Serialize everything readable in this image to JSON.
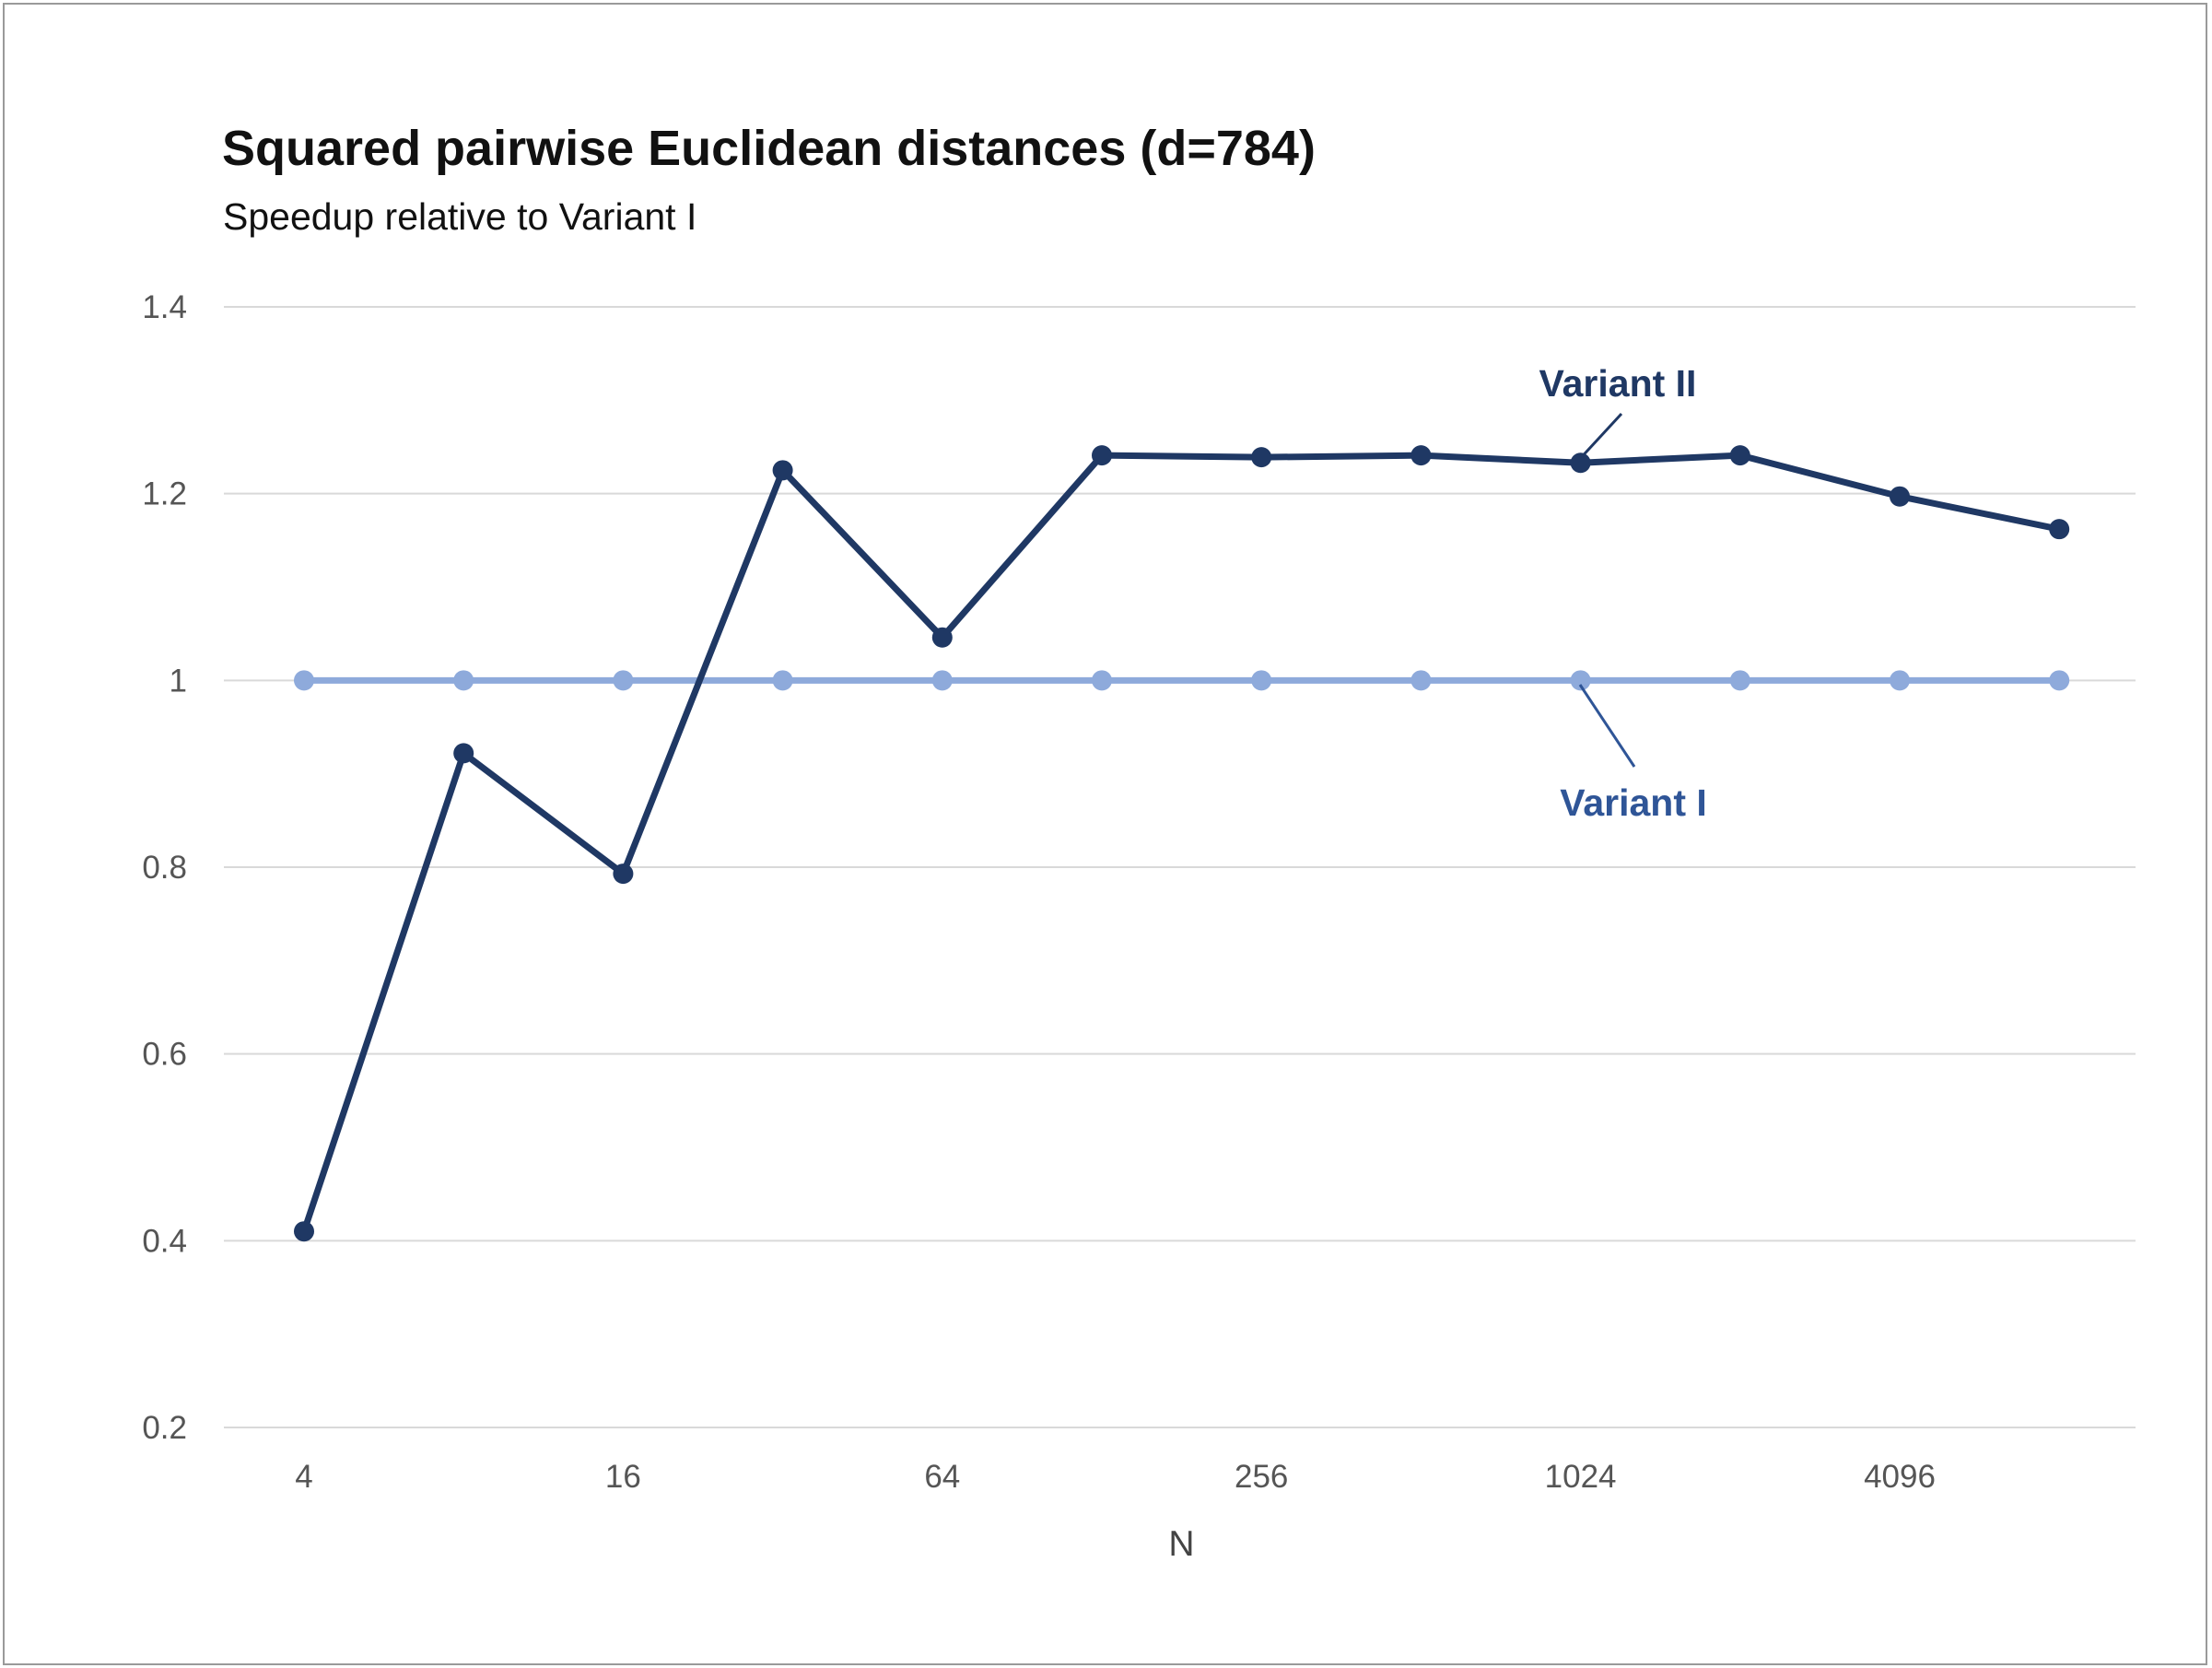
{
  "chart_data": {
    "type": "line",
    "title": "Squared pairwise Euclidean distances (d=784)",
    "subtitle": "Speedup relative to Variant I",
    "xlabel": "N",
    "ylabel": "",
    "x": [
      4,
      8,
      16,
      32,
      64,
      128,
      256,
      512,
      1024,
      2048,
      4096,
      8192
    ],
    "x_tick_labels": [
      "4",
      "16",
      "64",
      "256",
      "1024",
      "4096"
    ],
    "x_tick_label_values": [
      4,
      16,
      64,
      256,
      1024,
      4096
    ],
    "x_scale": "log2",
    "ylim": [
      0.2,
      1.4
    ],
    "y_ticks": [
      0.2,
      0.4,
      0.6,
      0.8,
      1,
      1.2,
      1.4
    ],
    "y_tick_labels": [
      "0.2",
      "0.4",
      "0.6",
      "0.8",
      "1",
      "1.2",
      "1.4"
    ],
    "grid": true,
    "series": [
      {
        "name": "Variant I",
        "color": "#8eaadb",
        "label_color": "#2f5597",
        "values": [
          1,
          1,
          1,
          1,
          1,
          1,
          1,
          1,
          1,
          1,
          1,
          1
        ]
      },
      {
        "name": "Variant II",
        "color": "#1f3864",
        "label_color": "#1f3864",
        "values": [
          0.41,
          0.922,
          0.793,
          1.225,
          1.046,
          1.241,
          1.239,
          1.241,
          1.233,
          1.241,
          1.197,
          1.162
        ]
      }
    ]
  }
}
